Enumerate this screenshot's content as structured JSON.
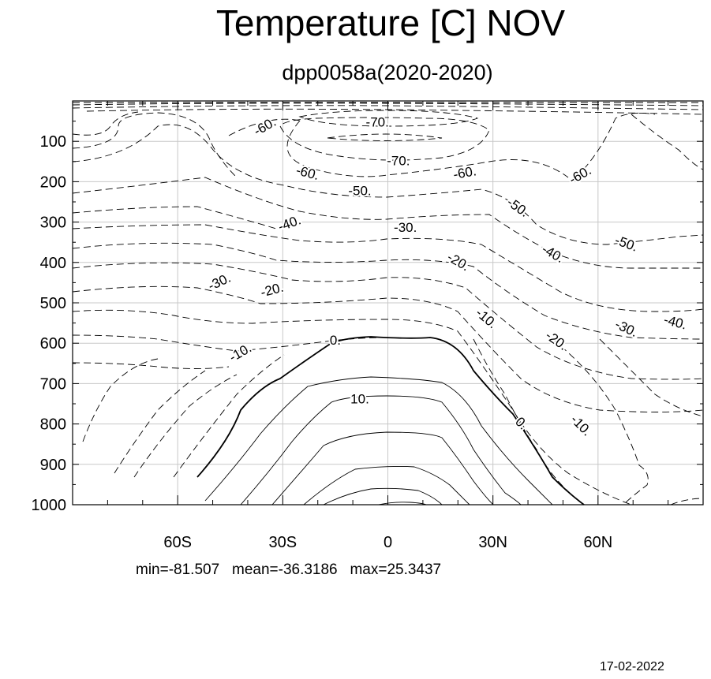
{
  "title": "Temperature [C] NOV",
  "subtitle": "dpp0058a(2020-2020)",
  "stats": "min=-81.507   mean=-36.3186   max=25.3437",
  "date": "17-02-2022",
  "chart_data": {
    "type": "contour",
    "title": "Temperature [C] NOV",
    "subtitle": "dpp0058a(2020-2020)",
    "x_axis": {
      "range": [
        -90,
        90
      ],
      "ticks": [
        -60,
        -30,
        0,
        30,
        60
      ],
      "tick_labels": [
        "60S",
        "30S",
        "0",
        "30N",
        "60N"
      ]
    },
    "y_axis": {
      "range": [
        0,
        1000
      ],
      "inverted": true,
      "ticks": [
        100,
        200,
        300,
        400,
        500,
        600,
        700,
        800,
        900,
        1000
      ],
      "tick_labels": [
        "100",
        "200",
        "300",
        "400",
        "500",
        "600",
        "700",
        "800",
        "900",
        "1000"
      ]
    },
    "grid": true,
    "contour_interval": 5,
    "negative_contours": "dashed",
    "positive_contours": "solid",
    "zero_contour": "bold",
    "contour_labels": [
      {
        "text": "-70.",
        "lat": -3,
        "p": 55,
        "angle": 0
      },
      {
        "text": "-70.",
        "lat": 3,
        "p": 150,
        "angle": 0
      },
      {
        "text": "-60.",
        "lat": -35,
        "p": 65,
        "angle": -30
      },
      {
        "text": "-60.",
        "lat": -23,
        "p": 180,
        "angle": 15
      },
      {
        "text": "-60.",
        "lat": 22,
        "p": 180,
        "angle": -10
      },
      {
        "text": "-60.",
        "lat": 55,
        "p": 185,
        "angle": -30
      },
      {
        "text": "-50.",
        "lat": -8,
        "p": 225,
        "angle": 0
      },
      {
        "text": "-50.",
        "lat": 37,
        "p": 265,
        "angle": 35
      },
      {
        "text": "-50.",
        "lat": 68,
        "p": 355,
        "angle": 20
      },
      {
        "text": "-40.",
        "lat": -28,
        "p": 305,
        "angle": -20
      },
      {
        "text": "-40.",
        "lat": 47,
        "p": 380,
        "angle": 30
      },
      {
        "text": "-40.",
        "lat": 82,
        "p": 550,
        "angle": 15
      },
      {
        "text": "-30.",
        "lat": 5,
        "p": 315,
        "angle": 0
      },
      {
        "text": "-30.",
        "lat": -48,
        "p": 450,
        "angle": -25
      },
      {
        "text": "-30.",
        "lat": 68,
        "p": 565,
        "angle": 25
      },
      {
        "text": "-20.",
        "lat": 20,
        "p": 400,
        "angle": 30
      },
      {
        "text": "-20.",
        "lat": -33,
        "p": 470,
        "angle": -15
      },
      {
        "text": "-20.",
        "lat": 48,
        "p": 595,
        "angle": 35
      },
      {
        "text": "-10.",
        "lat": -42,
        "p": 625,
        "angle": -30
      },
      {
        "text": "-10.",
        "lat": 28,
        "p": 540,
        "angle": 40
      },
      {
        "text": "-10.",
        "lat": 55,
        "p": 805,
        "angle": 45
      },
      {
        "text": "0.",
        "lat": -15,
        "p": 595,
        "angle": 0
      },
      {
        "text": "0.",
        "lat": 38,
        "p": 800,
        "angle": 45
      },
      {
        "text": "10.",
        "lat": -8,
        "p": 740,
        "angle": 0
      }
    ]
  }
}
